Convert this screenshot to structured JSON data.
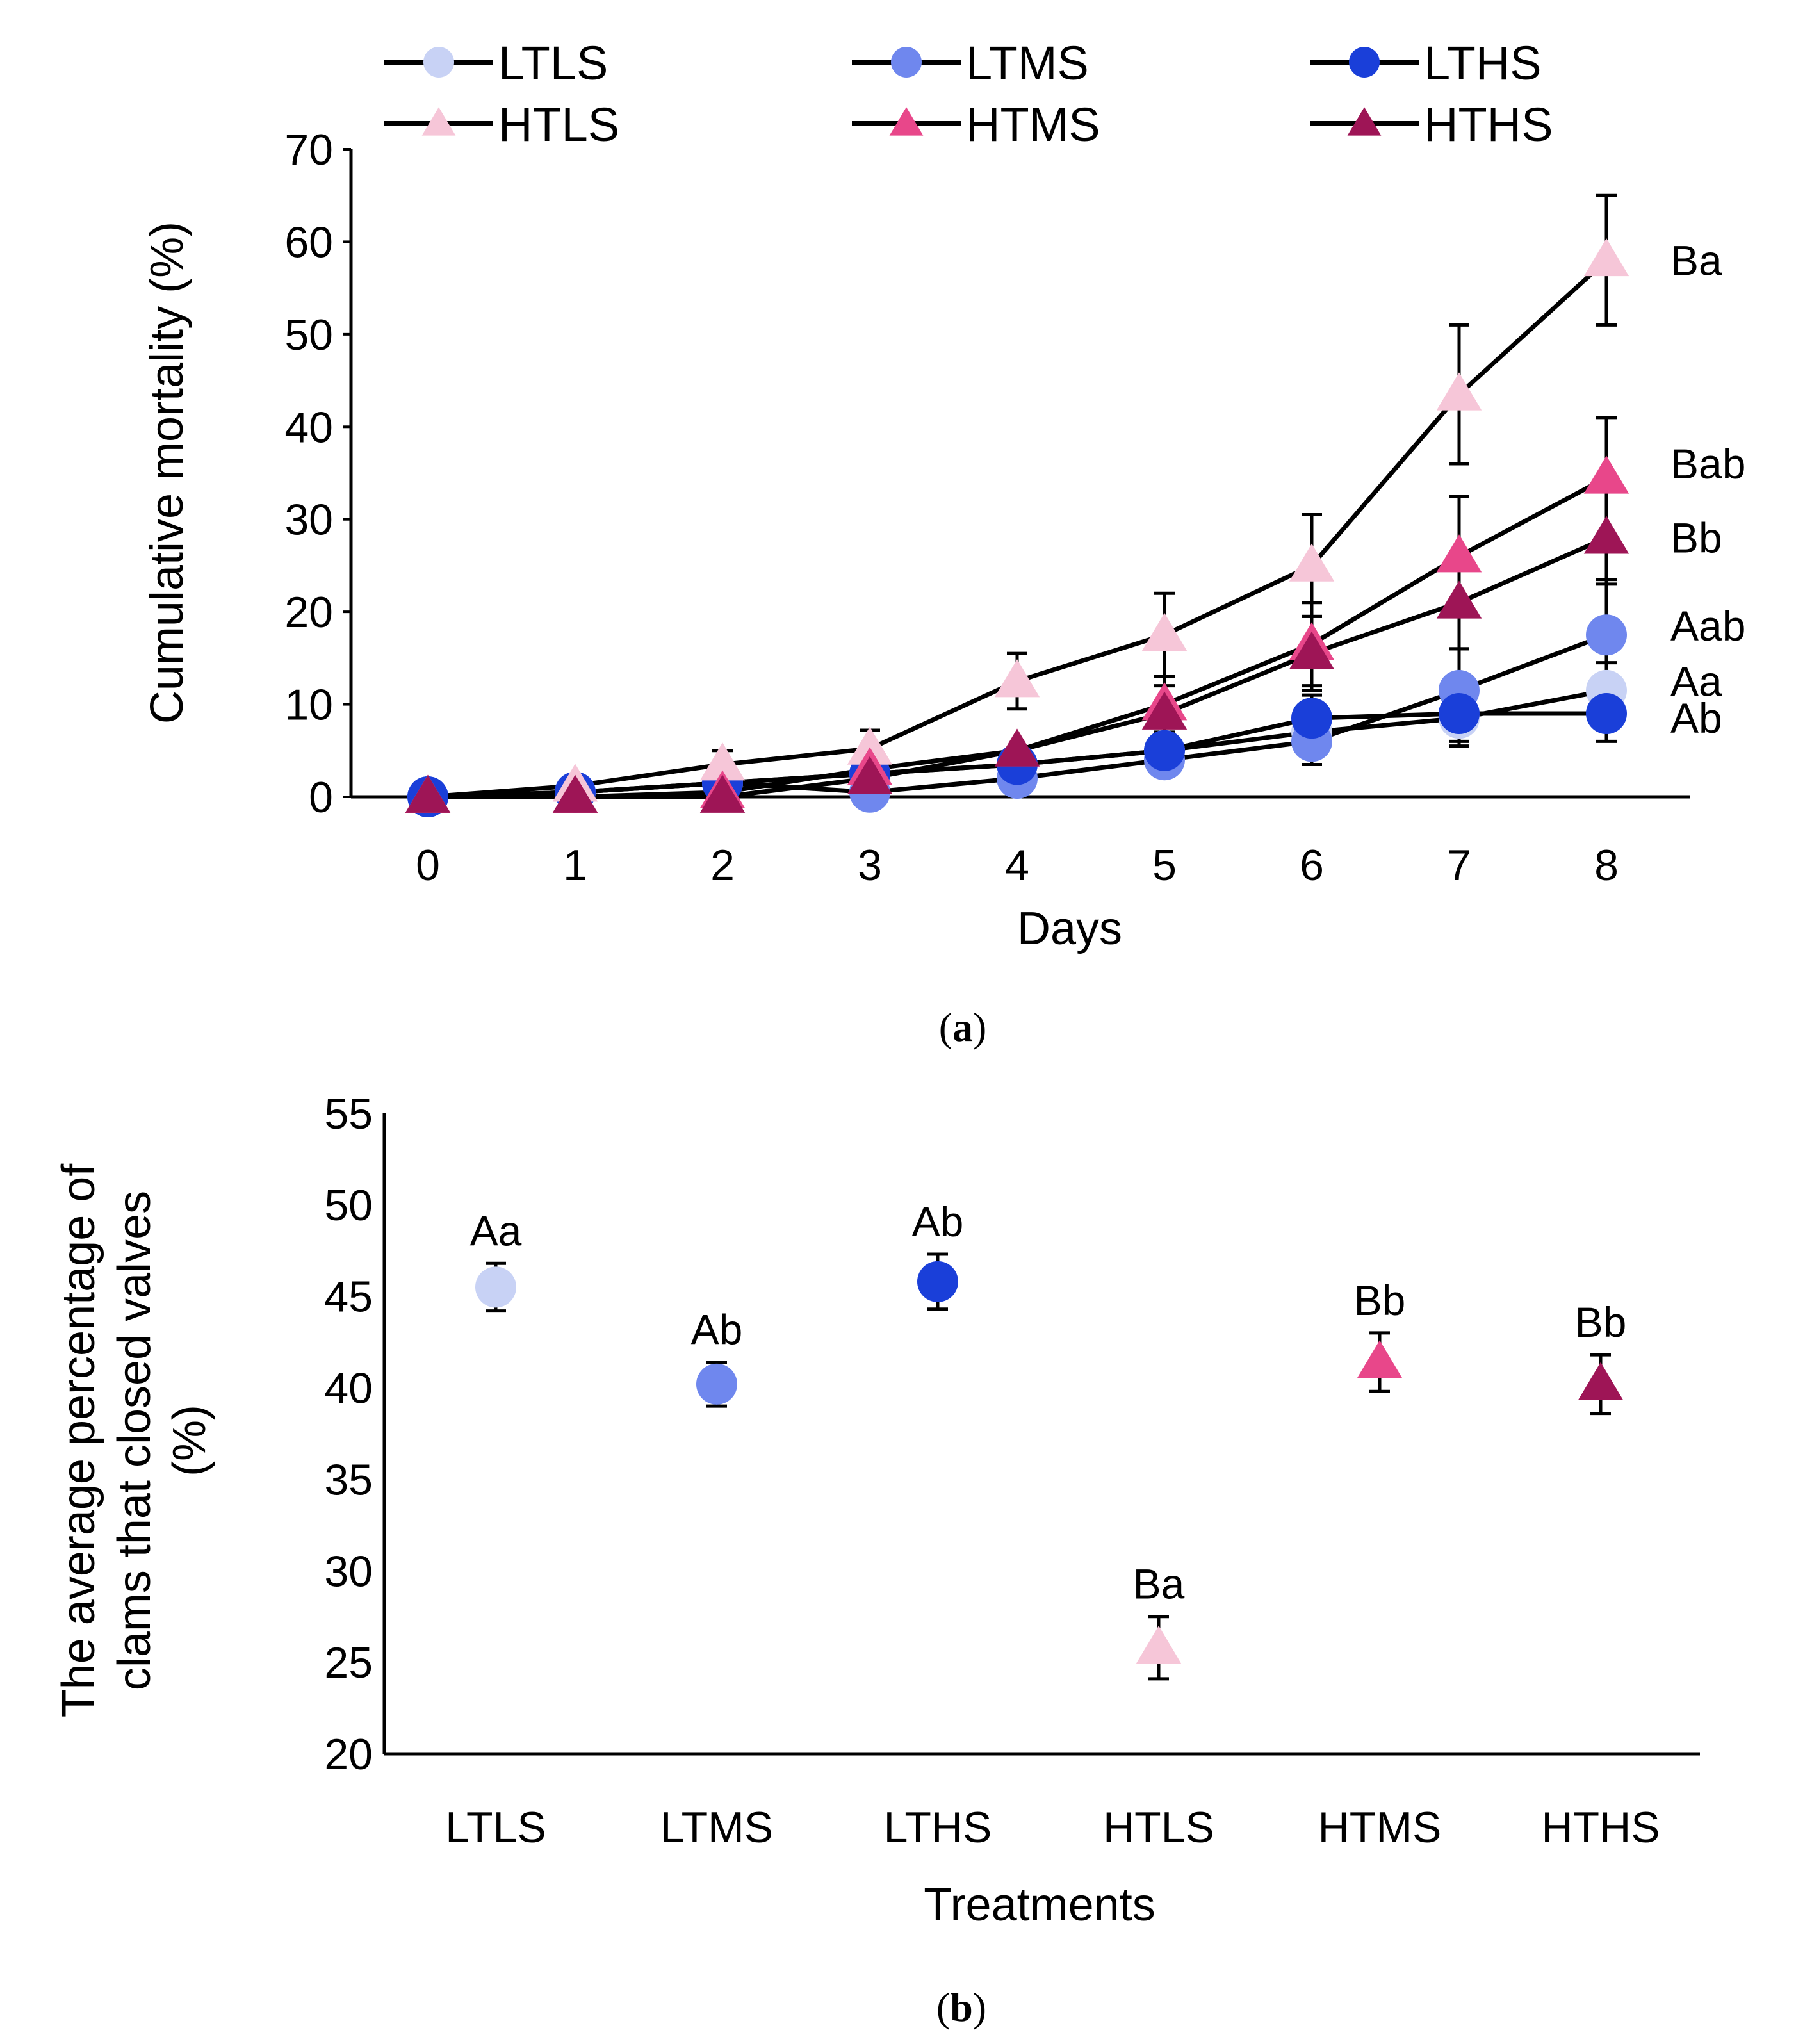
{
  "chart_data": [
    {
      "type": "line",
      "panel_label": "a",
      "title": "",
      "xlabel": "Days",
      "ylabel": "Cumulative  mortality  (%)",
      "x": [
        0,
        1,
        2,
        3,
        4,
        5,
        6,
        7,
        8
      ],
      "x_ticks": [
        "0",
        "1",
        "2",
        "3",
        "4",
        "5",
        "6",
        "7",
        "8"
      ],
      "ylim": [
        0,
        70
      ],
      "y_ticks": [
        "0",
        "10",
        "20",
        "30",
        "40",
        "50",
        "60",
        "70"
      ],
      "grid": false,
      "legend_position": "top",
      "series": [
        {
          "name": "LTLS",
          "marker": "circle",
          "color": "#c8d2f5",
          "values": [
            0,
            0.5,
            1.5,
            2.5,
            3.5,
            5,
            7,
            8.5,
            11.5
          ],
          "error": [
            0,
            0,
            0,
            0,
            0,
            0,
            0,
            3,
            3
          ],
          "label": "Aa"
        },
        {
          "name": "LTMS",
          "marker": "circle",
          "color": "#6f87ee",
          "values": [
            0,
            0.5,
            1.5,
            0.5,
            2,
            4,
            6,
            11.5,
            17.5
          ],
          "error": [
            0,
            0,
            0,
            0,
            0,
            0,
            2.5,
            4.5,
            6
          ],
          "label": "Aab"
        },
        {
          "name": "LTHS",
          "marker": "circle",
          "color": "#1a3fd9",
          "values": [
            0,
            0.5,
            1.5,
            2.5,
            3.5,
            5,
            8.5,
            9,
            9
          ],
          "error": [
            0,
            0,
            0,
            0,
            0,
            0,
            2.5,
            3,
            3
          ],
          "label": "Ab"
        },
        {
          "name": "HTLS",
          "marker": "triangle",
          "color": "#f6c6d8",
          "values": [
            0,
            1.2,
            3.5,
            5.2,
            12.5,
            17.5,
            25,
            43.5,
            58
          ],
          "error": [
            0,
            0.5,
            1.5,
            2,
            3,
            4.5,
            5.5,
            7.5,
            7
          ],
          "label": "Ba"
        },
        {
          "name": "HTMS",
          "marker": "triangle",
          "color": "#e8478a",
          "values": [
            0,
            0,
            0.5,
            3,
            5,
            10,
            16.5,
            26,
            34.5
          ],
          "error": [
            0,
            0,
            0,
            0,
            0,
            3,
            4.5,
            6.5,
            6.5
          ],
          "label": "Bab"
        },
        {
          "name": "HTHS",
          "marker": "triangle",
          "color": "#9e1556",
          "values": [
            0,
            0,
            0,
            2,
            5,
            9,
            15.5,
            21,
            28
          ],
          "error": [
            0,
            0,
            0,
            0,
            0,
            3,
            4,
            5,
            5
          ],
          "label": "Bb"
        }
      ]
    },
    {
      "type": "scatter",
      "panel_label": "b",
      "title": "",
      "xlabel": "Treatments",
      "ylabel_lines": [
        "The average percentage of",
        "clams that closed valves",
        "(%)"
      ],
      "categories": [
        "LTLS",
        "LTMS",
        "LTHS",
        "HTLS",
        "HTMS",
        "HTHS"
      ],
      "ylim": [
        20,
        55
      ],
      "y_ticks": [
        "20",
        "25",
        "30",
        "35",
        "40",
        "45",
        "50",
        "55"
      ],
      "grid": false,
      "points": [
        {
          "name": "LTLS",
          "value": 45.5,
          "error": 1.3,
          "marker": "circle",
          "color": "#c8d2f5",
          "label": "Aa"
        },
        {
          "name": "LTMS",
          "value": 40.2,
          "error": 1.2,
          "marker": "circle",
          "color": "#6f87ee",
          "label": "Ab"
        },
        {
          "name": "LTHS",
          "value": 45.8,
          "error": 1.5,
          "marker": "circle",
          "color": "#1a3fd9",
          "label": "Ab"
        },
        {
          "name": "HTLS",
          "value": 25.8,
          "error": 1.7,
          "marker": "triangle",
          "color": "#f6c6d8",
          "label": "Ba"
        },
        {
          "name": "HTMS",
          "value": 41.4,
          "error": 1.6,
          "marker": "triangle",
          "color": "#e8478a",
          "label": "Bb"
        },
        {
          "name": "HTHS",
          "value": 40.2,
          "error": 1.6,
          "marker": "triangle",
          "color": "#9e1556",
          "label": "Bb"
        }
      ]
    }
  ],
  "captions": {
    "a": "a",
    "b": "b",
    "open": "(",
    "close": ")"
  }
}
